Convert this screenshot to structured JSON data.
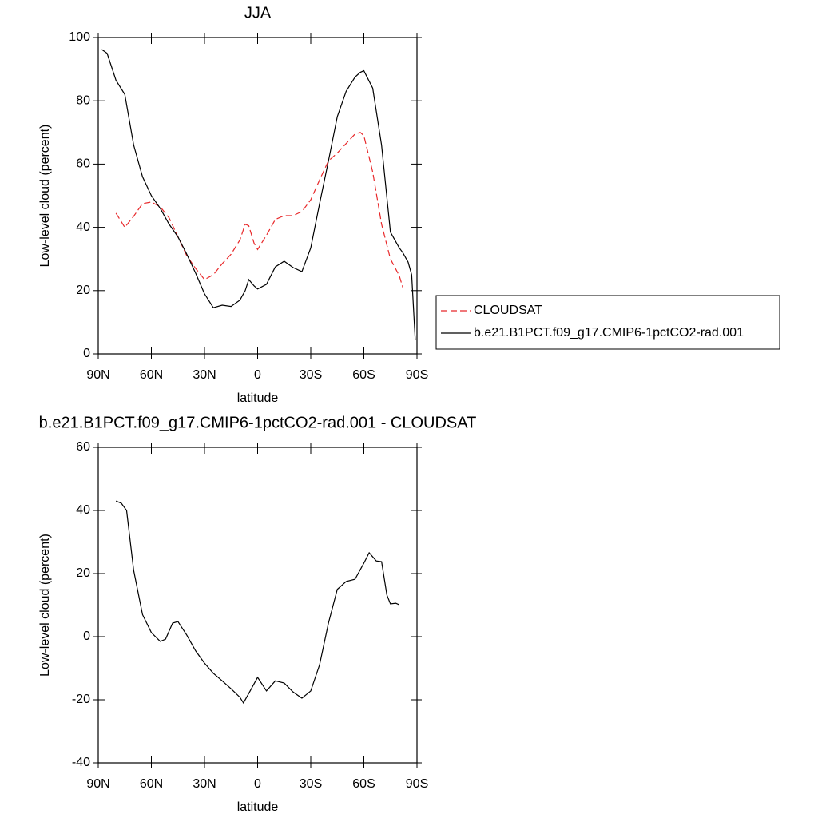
{
  "chart_data": [
    {
      "type": "line",
      "title": "JJA",
      "xlabel": "latitude",
      "ylabel": "Low-level cloud (percent)",
      "x": [
        88,
        85,
        80,
        75,
        70,
        65,
        60,
        55,
        50,
        45,
        40,
        35,
        30,
        25,
        20,
        15,
        10,
        7,
        5,
        2,
        0,
        -5,
        -10,
        -15,
        -20,
        -25,
        -30,
        -35,
        -40,
        -45,
        -50,
        -55,
        -58,
        -60,
        -65,
        -70,
        -75,
        -80,
        -82,
        -85,
        -87,
        -89
      ],
      "series": [
        {
          "name": "CLOUDSAT",
          "color": "#e8282a",
          "dash": "dashed",
          "values": [
            null,
            null,
            44.5,
            40,
            43.5,
            47.5,
            48,
            46.5,
            43,
            37,
            31,
            27,
            23.5,
            25,
            28.5,
            31.5,
            36,
            41,
            40.5,
            35,
            33,
            37.5,
            42.5,
            43.7,
            43.7,
            45,
            48.7,
            55,
            61,
            63.5,
            66.5,
            69.5,
            70,
            69,
            57.5,
            41,
            30,
            24.7,
            21,
            null,
            null,
            null
          ]
        },
        {
          "name": "b.e21.B1PCT.f09_g17.CMIP6-1pctCO2-rad.001",
          "color": "#000000",
          "dash": "solid",
          "values": [
            96.2,
            95,
            86.5,
            82,
            66,
            56,
            50,
            46,
            41,
            37,
            31.5,
            25.5,
            19,
            14.6,
            15.4,
            15,
            17,
            20,
            23.5,
            21.5,
            20.5,
            22,
            27.5,
            29.3,
            27.3,
            26,
            33.5,
            47.5,
            61,
            75,
            83,
            87.5,
            89,
            89.5,
            84,
            66,
            38.5,
            33.5,
            32,
            29,
            25,
            4.5
          ]
        }
      ],
      "xlim": [
        90,
        -90
      ],
      "xticks": [
        {
          "value": 90,
          "label": "90N"
        },
        {
          "value": 60,
          "label": "60N"
        },
        {
          "value": 30,
          "label": "30N"
        },
        0,
        {
          "value": -30,
          "label": "30S"
        },
        {
          "value": -60,
          "label": "60S"
        },
        {
          "value": -90,
          "label": "90S"
        }
      ],
      "ylim": [
        0,
        100
      ],
      "yticks": [
        0,
        20,
        40,
        60,
        80,
        100
      ],
      "legend": "right"
    },
    {
      "type": "line",
      "title": "b.e21.B1PCT.f09_g17.CMIP6-1pctCO2-rad.001 - CLOUDSAT",
      "xlabel": "latitude",
      "ylabel": "Low-level cloud (percent)",
      "x": [
        80,
        77,
        74,
        70,
        65,
        60,
        55,
        52,
        48,
        45,
        40,
        35,
        30,
        25,
        20,
        15,
        10,
        8,
        5,
        0,
        -5,
        -10,
        -15,
        -20,
        -25,
        -30,
        -35,
        -40,
        -45,
        -50,
        -55,
        -60,
        -63,
        -67,
        -70,
        -73,
        -75,
        -78,
        -80
      ],
      "series": [
        {
          "color": "#000000",
          "dash": "solid",
          "values": [
            43,
            42.3,
            40,
            21,
            7,
            1.3,
            -1.5,
            -0.8,
            4.3,
            4.8,
            0.5,
            -4.5,
            -8.4,
            -11.6,
            -14,
            -16.5,
            -19.2,
            -21,
            -18,
            -12.9,
            -17.2,
            -14,
            -14.7,
            -17.5,
            -19.5,
            -17.2,
            -8.9,
            4.3,
            15,
            17.5,
            18.2,
            23.3,
            26.6,
            24,
            23.8,
            13.2,
            10.4,
            10.6,
            10.1
          ]
        }
      ],
      "xlim": [
        90,
        -90
      ],
      "xticks": [
        {
          "value": 90,
          "label": "90N"
        },
        {
          "value": 60,
          "label": "60N"
        },
        {
          "value": 30,
          "label": "30N"
        },
        0,
        {
          "value": -30,
          "label": "30S"
        },
        {
          "value": -60,
          "label": "60S"
        },
        {
          "value": -90,
          "label": "90S"
        }
      ],
      "ylim": [
        -40,
        60
      ],
      "yticks": [
        -40,
        -20,
        0,
        20,
        40,
        60
      ]
    }
  ]
}
